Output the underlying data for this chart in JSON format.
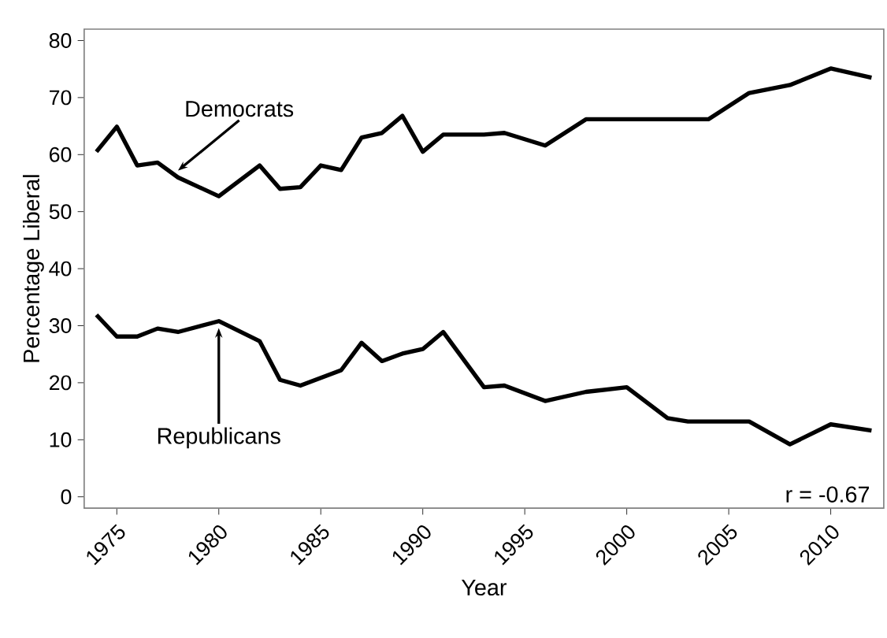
{
  "chart_data": {
    "type": "line",
    "xlabel": "Year",
    "ylabel": "Percentage Liberal",
    "xlim": [
      1973.4,
      2012.6
    ],
    "ylim": [
      -2,
      82
    ],
    "xticks": [
      1975,
      1980,
      1985,
      1990,
      1995,
      2000,
      2005,
      2010
    ],
    "yticks": [
      0,
      10,
      20,
      30,
      40,
      50,
      60,
      70,
      80
    ],
    "grid": false,
    "legend": false,
    "marker": "none",
    "line_style": "solid",
    "series": [
      {
        "name": "Democrats",
        "color": "#000000",
        "x": [
          1974,
          1975,
          1976,
          1977,
          1978,
          1980,
          1982,
          1983,
          1984,
          1985,
          1986,
          1987,
          1988,
          1989,
          1990,
          1991,
          1993,
          1994,
          1996,
          1998,
          2004,
          2006,
          2008,
          2010,
          2012
        ],
        "values": [
          60.5,
          64.9,
          58.1,
          58.6,
          56,
          52.7,
          58.1,
          54,
          54.3,
          58.1,
          57.3,
          63,
          63.8,
          66.8,
          60.5,
          63.5,
          63.5,
          63.8,
          61.6,
          66.2,
          66.2,
          70.8,
          72.2,
          75.1,
          73.5
        ]
      },
      {
        "name": "Republicans",
        "color": "#000000",
        "x": [
          1974,
          1975,
          1976,
          1977,
          1978,
          1980,
          1982,
          1983,
          1984,
          1986,
          1987,
          1988,
          1989,
          1990,
          1991,
          1993,
          1994,
          1996,
          1998,
          2000,
          2002,
          2003,
          2006,
          2008,
          2010,
          2012
        ],
        "values": [
          31.9,
          28.1,
          28.1,
          29.5,
          28.9,
          30.8,
          27.3,
          20.5,
          19.5,
          22.2,
          27,
          23.8,
          25.1,
          25.9,
          28.9,
          19.2,
          19.5,
          16.8,
          18.4,
          19.2,
          13.8,
          13.2,
          13.2,
          9.2,
          12.7,
          11.6
        ]
      }
    ],
    "annotations": [
      "r = -0.67"
    ]
  }
}
